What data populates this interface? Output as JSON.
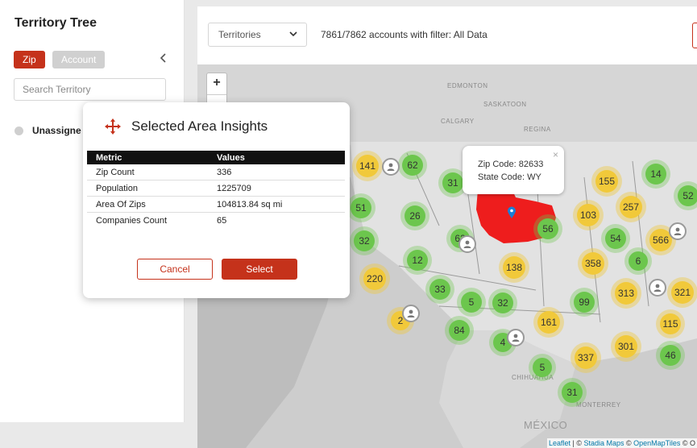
{
  "sidebar": {
    "title": "Territory Tree",
    "toggle_zip": "Zip",
    "toggle_account": "Account",
    "search_placeholder": "Search Territory",
    "tree_item": "Unassigne"
  },
  "toolbar": {
    "dropdown_value": "Territories",
    "accounts_text": "7861/7862 accounts with filter: All Data"
  },
  "map": {
    "zoom_in": "+",
    "zoom_out": "−",
    "places": [
      "EDMONTON",
      "SASKATOON",
      "CALGARY",
      "REGINA",
      "MONTERREY",
      "MÉXICO",
      "CHIHUAHUA"
    ],
    "clusters": [
      "141",
      "62",
      "31",
      "51",
      "26",
      "32",
      "62",
      "12",
      "220",
      "33",
      "5",
      "32",
      "84",
      "4",
      "2",
      "56",
      "138",
      "155",
      "14",
      "52",
      "257",
      "103",
      "54",
      "566",
      "358",
      "6",
      "313",
      "321",
      "99",
      "161",
      "115",
      "301",
      "337",
      "46",
      "5",
      "31"
    ],
    "popup": {
      "zip_line": "Zip Code: 82633",
      "state_line": "State Code: WY",
      "close": "×"
    },
    "attribution": {
      "leaflet": "Leaflet",
      "sep1": " | © ",
      "stadia": "Stadia Maps",
      "sep2": " © ",
      "openmaptiles": "OpenMapTiles",
      "sep3": " © O"
    },
    "highlight_color": "#ee1d1d"
  },
  "modal": {
    "title": "Selected Area Insights",
    "headers": [
      "Metric",
      "Values"
    ],
    "rows": [
      [
        "Zip Count",
        "336"
      ],
      [
        "Population",
        "1225709"
      ],
      [
        "Area Of Zips",
        "104813.84 sq mi"
      ],
      [
        "Companies Count",
        "65"
      ]
    ],
    "cancel_label": "Cancel",
    "select_label": "Select"
  },
  "colors": {
    "accent": "#c5321b",
    "cluster_green": "#6cc64d",
    "cluster_yellow": "#f1c93a"
  }
}
